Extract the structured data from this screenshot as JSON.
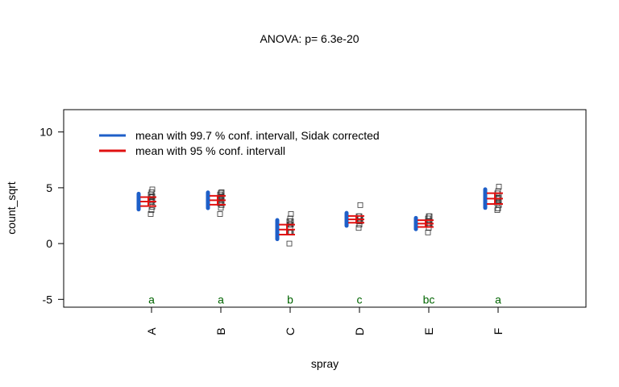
{
  "chart_data": {
    "type": "scatter",
    "title": "ANOVA:  p= 6.3e-20",
    "xlabel": "spray",
    "ylabel": "count_sqrt",
    "ylim": [
      -5.7,
      12
    ],
    "yticks": [
      -5,
      0,
      5,
      10
    ],
    "categories": [
      "A",
      "B",
      "C",
      "D",
      "E",
      "F"
    ],
    "legend": {
      "placement": "top-left",
      "entries": [
        {
          "label": "mean with 99.7 % conf. intervall, Sidak corrected",
          "color": "#1e5fc8"
        },
        {
          "label": "mean with 95 % conf. intervall",
          "color": "#e01010"
        }
      ]
    },
    "groups": [
      {
        "name": "A",
        "mean": 3.76,
        "ci997": [
          3.06,
          4.46
        ],
        "ci95": [
          3.36,
          4.16
        ],
        "letter": "a",
        "points": [
          2.65,
          3.0,
          3.3,
          3.6,
          3.75,
          3.85,
          4.0,
          4.15,
          4.25,
          4.4,
          4.6,
          4.85
        ]
      },
      {
        "name": "B",
        "mean": 3.88,
        "ci997": [
          3.18,
          4.58
        ],
        "ci95": [
          3.48,
          4.28
        ],
        "letter": "a",
        "points": [
          2.65,
          3.2,
          3.45,
          3.6,
          3.75,
          3.9,
          4.0,
          4.12,
          4.25,
          4.4,
          4.55,
          4.6
        ]
      },
      {
        "name": "C",
        "mean": 1.25,
        "ci997": [
          0.4,
          2.1
        ],
        "ci95": [
          0.8,
          1.7
        ],
        "letter": "b",
        "points": [
          0.0,
          1.0,
          1.0,
          1.0,
          1.4,
          1.7,
          1.7,
          1.7,
          2.0,
          2.0,
          2.25,
          2.65
        ]
      },
      {
        "name": "D",
        "mean": 2.17,
        "ci997": [
          1.6,
          2.74
        ],
        "ci95": [
          1.87,
          2.47
        ],
        "letter": "c",
        "points": [
          1.4,
          1.7,
          2.0,
          2.0,
          2.0,
          2.25,
          2.25,
          2.25,
          2.25,
          2.45,
          2.45,
          3.45
        ]
      },
      {
        "name": "E",
        "mean": 1.79,
        "ci997": [
          1.29,
          2.29
        ],
        "ci95": [
          1.49,
          2.09
        ],
        "letter": "bc",
        "points": [
          1.0,
          1.4,
          1.7,
          1.7,
          1.7,
          1.7,
          2.0,
          2.0,
          2.0,
          2.25,
          2.45,
          2.45
        ]
      },
      {
        "name": "F",
        "mean": 4.03,
        "ci997": [
          3.2,
          4.86
        ],
        "ci95": [
          3.55,
          4.51
        ],
        "letter": "a",
        "points": [
          3.0,
          3.15,
          3.45,
          3.6,
          3.75,
          3.85,
          4.0,
          4.12,
          4.25,
          4.5,
          4.7,
          5.1
        ]
      }
    ]
  },
  "colors": {
    "ci997": "#1e5fc8",
    "ci95": "#e01010",
    "letters": "#006400",
    "points": "#333333"
  }
}
